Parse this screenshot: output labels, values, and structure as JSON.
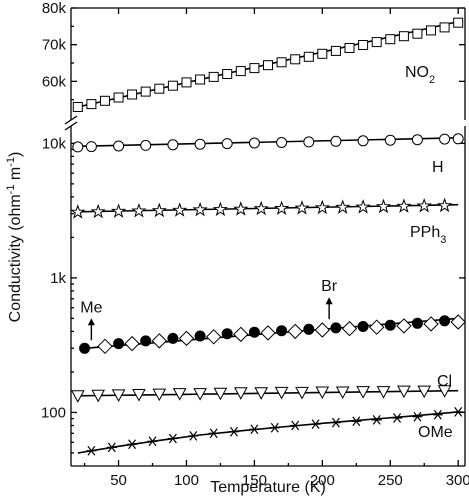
{
  "chart_data": {
    "type": "scatter",
    "xlabel": "Temperature (K)",
    "ylabel_parts": [
      "Conductivity (ohm",
      "-1",
      " m",
      "-1",
      ")"
    ],
    "xlim": [
      15,
      305
    ],
    "x_ticks": [
      {
        "v": 50,
        "label": "50"
      },
      {
        "v": 100,
        "label": "100"
      },
      {
        "v": 150,
        "label": "150"
      },
      {
        "v": 200,
        "label": "200"
      },
      {
        "v": 250,
        "label": "250"
      },
      {
        "v": 300,
        "label": "300"
      }
    ],
    "upper_panel": {
      "scale": "linear",
      "ylim": [
        50000,
        80000
      ],
      "y_ticks": [
        {
          "v": 60000,
          "label": "60k"
        },
        {
          "v": 70000,
          "label": "70k"
        },
        {
          "v": 80000,
          "label": "80k"
        }
      ]
    },
    "lower_panel": {
      "scale": "log",
      "ylim": [
        40,
        13000
      ],
      "y_ticks": [
        {
          "v": 100,
          "label": "100"
        },
        {
          "v": 1000,
          "label": "1k"
        },
        {
          "v": 10000,
          "label": "10k"
        }
      ]
    },
    "series": [
      {
        "name": "NO2",
        "label_main": "NO",
        "label_sub": "2",
        "panel": "upper",
        "marker": "square-open",
        "fit": [
          [
            20,
            53000
          ],
          [
            300,
            76300
          ]
        ],
        "x": [
          20,
          30,
          40,
          50,
          60,
          70,
          80,
          90,
          100,
          110,
          120,
          130,
          140,
          150,
          160,
          170,
          180,
          190,
          200,
          210,
          220,
          230,
          240,
          250,
          260,
          270,
          280,
          290,
          300
        ],
        "values": [
          53000,
          53800,
          54700,
          55600,
          56400,
          57200,
          58000,
          58800,
          59700,
          60500,
          61200,
          62000,
          62800,
          63600,
          64400,
          65200,
          66000,
          66700,
          67500,
          68300,
          69100,
          69900,
          70700,
          71500,
          72300,
          73000,
          73900,
          74700,
          76000
        ]
      },
      {
        "name": "H",
        "label_main": "H",
        "label_sub": "",
        "panel": "lower",
        "marker": "circle-open",
        "fit": [
          [
            20,
            9500
          ],
          [
            300,
            11000
          ]
        ],
        "x": [
          20,
          30,
          50,
          70,
          90,
          110,
          130,
          150,
          170,
          190,
          210,
          230,
          250,
          270,
          290,
          300
        ],
        "values": [
          9400,
          9450,
          9550,
          9650,
          9750,
          9850,
          9950,
          10050,
          10150,
          10250,
          10350,
          10450,
          10550,
          10650,
          10750,
          10800
        ]
      },
      {
        "name": "PPh3",
        "label_main": "PPh",
        "label_sub": "3",
        "panel": "lower",
        "marker": "star-open",
        "fit": [
          [
            20,
            3100
          ],
          [
            300,
            3500
          ]
        ],
        "x": [
          20,
          35,
          50,
          65,
          80,
          95,
          110,
          125,
          140,
          155,
          170,
          185,
          200,
          215,
          230,
          245,
          260,
          275,
          290
        ],
        "values": [
          3080,
          3100,
          3120,
          3140,
          3160,
          3180,
          3200,
          3220,
          3240,
          3260,
          3280,
          3300,
          3320,
          3340,
          3360,
          3380,
          3400,
          3420,
          3440
        ]
      },
      {
        "name": "Me",
        "label_main": "Me",
        "label_sub": "",
        "panel": "lower",
        "marker": "circle-filled",
        "fit": [
          [
            25,
            300
          ],
          [
            300,
            500
          ]
        ],
        "x": [
          25,
          50,
          70,
          90,
          110,
          130,
          150,
          170,
          190,
          210,
          230,
          250,
          270,
          290
        ],
        "values": [
          300,
          325,
          340,
          355,
          370,
          385,
          395,
          405,
          415,
          425,
          435,
          445,
          460,
          480
        ]
      },
      {
        "name": "Br",
        "label_main": "Br",
        "label_sub": "",
        "panel": "lower",
        "marker": "diamond-open",
        "fit": null,
        "x": [
          40,
          60,
          80,
          100,
          120,
          140,
          160,
          180,
          200,
          220,
          240,
          260,
          280,
          300
        ],
        "values": [
          310,
          325,
          340,
          355,
          365,
          380,
          390,
          400,
          410,
          420,
          430,
          440,
          455,
          470
        ]
      },
      {
        "name": "Cl",
        "label_main": "Cl",
        "label_sub": "",
        "panel": "lower",
        "marker": "triangle-down-open",
        "fit": [
          [
            20,
            133
          ],
          [
            300,
            145
          ]
        ],
        "x": [
          20,
          35,
          50,
          65,
          80,
          95,
          110,
          125,
          140,
          155,
          170,
          185,
          200,
          215,
          230,
          245,
          260,
          275,
          290
        ],
        "values": [
          133,
          134,
          135,
          136,
          137,
          138,
          138,
          139,
          140,
          140,
          141,
          141,
          142,
          142,
          143,
          143,
          144,
          144,
          145
        ]
      },
      {
        "name": "OMe",
        "label_main": "OMe",
        "label_sub": "",
        "panel": "lower",
        "marker": "asterisk",
        "fit": [
          [
            20,
            50
          ],
          [
            50,
            56
          ],
          [
            80,
            62
          ],
          [
            110,
            68
          ],
          [
            140,
            73
          ],
          [
            170,
            78
          ],
          [
            200,
            83
          ],
          [
            230,
            88
          ],
          [
            260,
            93
          ],
          [
            300,
            101
          ]
        ],
        "x": [
          30,
          45,
          60,
          75,
          90,
          105,
          120,
          135,
          150,
          165,
          180,
          195,
          210,
          225,
          240,
          255,
          270,
          285,
          300
        ],
        "values": [
          52,
          55,
          58,
          61,
          64,
          67,
          70,
          72,
          75,
          77,
          80,
          82,
          84,
          86,
          88,
          91,
          93,
          96,
          101
        ]
      }
    ],
    "annotations": [
      {
        "text": "Me",
        "x": 30,
        "y": 300,
        "arrow": "up"
      },
      {
        "text": "Br",
        "x": 205,
        "y": 430,
        "arrow": "up"
      }
    ]
  }
}
